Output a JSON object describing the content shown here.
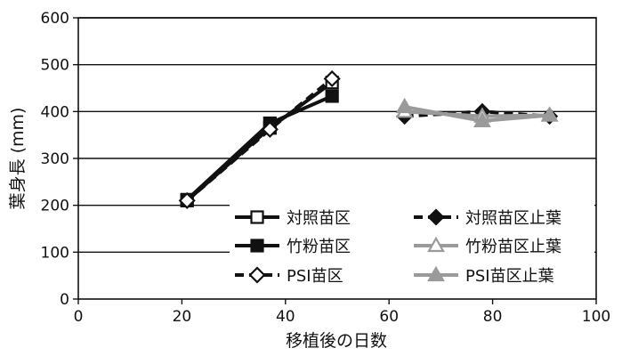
{
  "chart_data": {
    "type": "line",
    "xlabel": "移植後の日数",
    "ylabel": "葉身長 (mm)",
    "xlim": [
      0,
      100
    ],
    "ylim": [
      0,
      600
    ],
    "xticks": [
      0,
      20,
      40,
      60,
      80,
      100
    ],
    "yticks": [
      0,
      100,
      200,
      300,
      400,
      500,
      600
    ],
    "grid": "horizontal",
    "legend_position": "bottom-right",
    "series": [
      {
        "name": "対照苗区",
        "x": [
          21,
          37,
          49
        ],
        "y": [
          210,
          365,
          462
        ],
        "color": "#111111",
        "marker": "square-open",
        "dash": false
      },
      {
        "name": "竹粉苗区",
        "x": [
          21,
          37,
          49
        ],
        "y": [
          212,
          375,
          433
        ],
        "color": "#111111",
        "marker": "square-filled",
        "dash": false
      },
      {
        "name": "PSI苗区",
        "x": [
          21,
          37,
          49
        ],
        "y": [
          210,
          362,
          470
        ],
        "color": "#111111",
        "marker": "diamond-open",
        "dash": true
      },
      {
        "name": "対照苗区止葉",
        "x": [
          63,
          78,
          91
        ],
        "y": [
          390,
          400,
          390
        ],
        "color": "#111111",
        "marker": "diamond-filled",
        "dash": true
      },
      {
        "name": "竹粉苗区止葉",
        "x": [
          63,
          78,
          91
        ],
        "y": [
          400,
          390,
          392
        ],
        "color": "#9a9a9a",
        "marker": "triangle-open",
        "dash": false
      },
      {
        "name": "PSI苗区止葉",
        "x": [
          63,
          78,
          91
        ],
        "y": [
          410,
          380,
          392
        ],
        "color": "#9a9a9a",
        "marker": "triangle-filled",
        "dash": false
      }
    ]
  }
}
